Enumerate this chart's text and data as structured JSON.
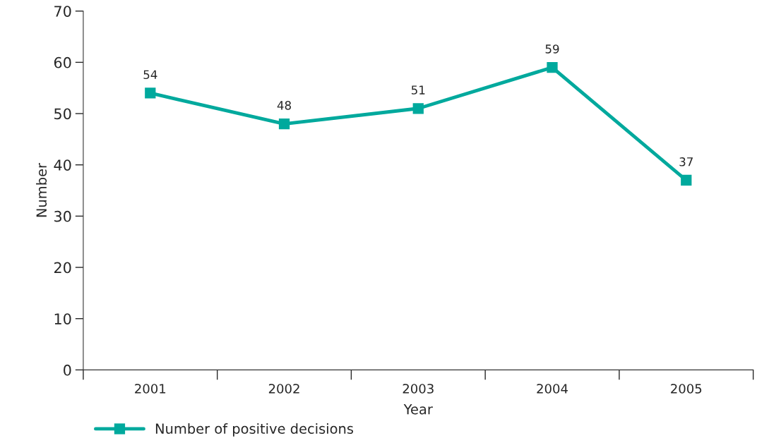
{
  "chart_data": {
    "type": "line",
    "xlabel": "Year",
    "ylabel": "Number",
    "categories": [
      "2001",
      "2002",
      "2003",
      "2004",
      "2005"
    ],
    "series": [
      {
        "name": "Number of positive decisions",
        "color": "#00a99d",
        "values": [
          54,
          48,
          51,
          59,
          37
        ]
      }
    ],
    "ylim": [
      0,
      70
    ],
    "yticks": [
      0,
      10,
      20,
      30,
      40,
      50,
      60,
      70
    ],
    "data_labels": true,
    "marker": "square",
    "line_style": "solid",
    "legend": "bottom left",
    "grid": false
  }
}
